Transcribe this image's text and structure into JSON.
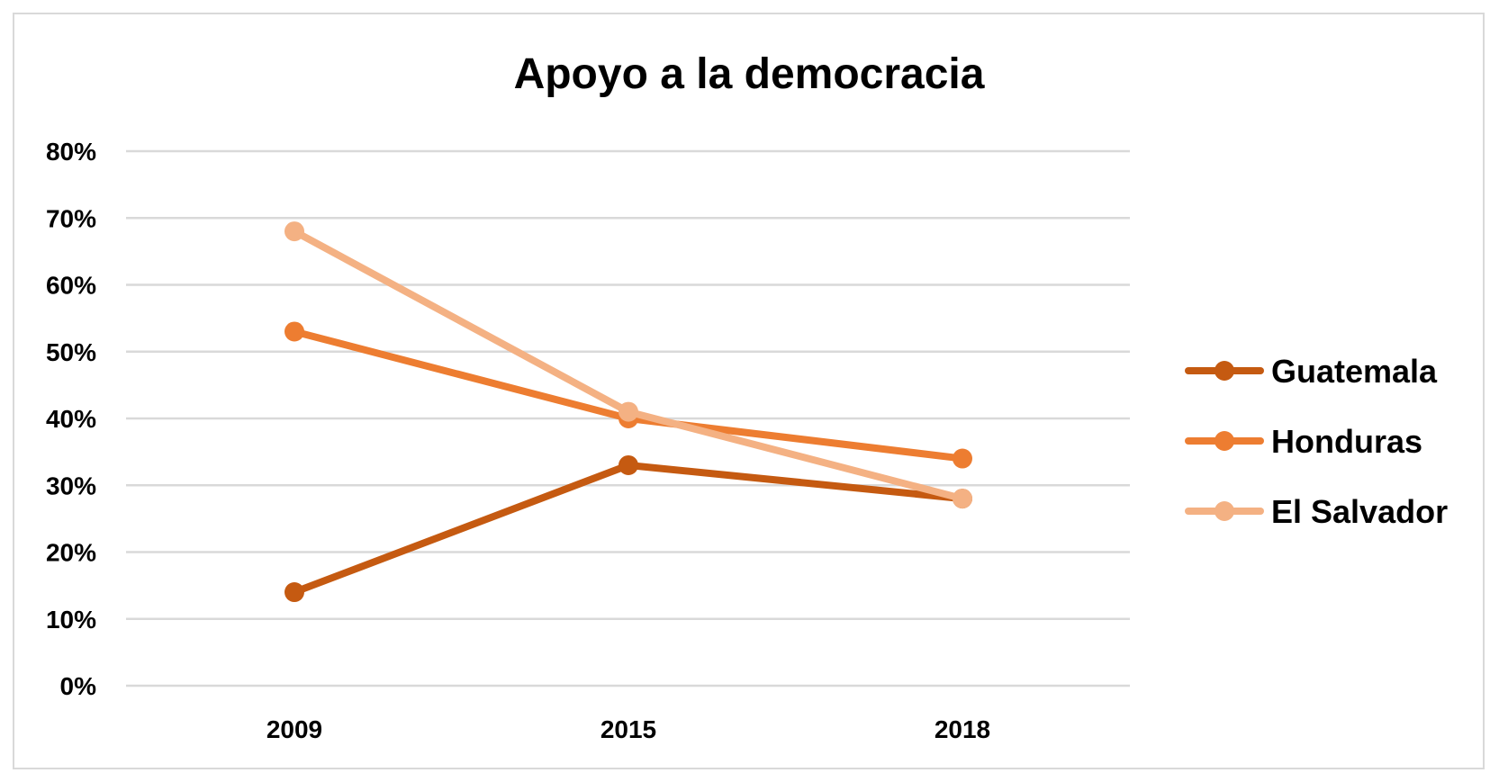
{
  "chart_data": {
    "type": "line",
    "title": "Apoyo a la democracia",
    "xlabel": "",
    "ylabel": "",
    "categories": [
      "2009",
      "2015",
      "2018"
    ],
    "ylim": [
      0,
      0.8
    ],
    "y_tick_labels": [
      "0%",
      "10%",
      "20%",
      "30%",
      "40%",
      "50%",
      "60%",
      "70%",
      "80%"
    ],
    "grid": true,
    "legend_position": "right",
    "series": [
      {
        "name": "Guatemala",
        "color": "#c55a11",
        "values": [
          0.14,
          0.33,
          0.28
        ]
      },
      {
        "name": "Honduras",
        "color": "#ed7d31",
        "values": [
          0.53,
          0.4,
          0.34
        ]
      },
      {
        "name": "El Salvador",
        "color": "#f4b183",
        "values": [
          0.68,
          0.41,
          0.28
        ]
      }
    ]
  }
}
